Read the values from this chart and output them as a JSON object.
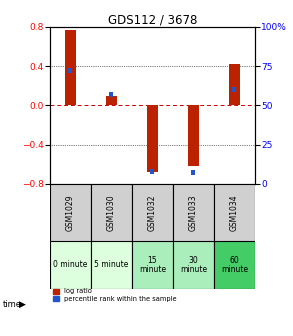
{
  "title": "GDS112 / 3678",
  "samples": [
    "GSM1029",
    "GSM1030",
    "GSM1032",
    "GSM1033",
    "GSM1034"
  ],
  "time_labels": [
    "0 minute",
    "5 minute",
    "15\nminute",
    "30\nminute",
    "60\nminute"
  ],
  "time_colors": [
    "#ddffdd",
    "#ddffdd",
    "#aaeebb",
    "#aaeebb",
    "#44cc66"
  ],
  "log_ratios": [
    0.77,
    0.1,
    -0.68,
    -0.62,
    0.42
  ],
  "percentile_ranks": [
    72,
    57,
    8,
    7,
    60
  ],
  "bar_color_red": "#bb2200",
  "bar_color_blue": "#2255cc",
  "ylim_left": [
    -0.8,
    0.8
  ],
  "ylim_right": [
    0,
    100
  ],
  "yticks_left": [
    -0.8,
    -0.4,
    0.0,
    0.4,
    0.8
  ],
  "yticks_right": [
    0,
    25,
    50,
    75,
    100
  ],
  "bg_color": "#ffffff",
  "plot_bg": "#ffffff",
  "sample_bg": "#d0d0d0",
  "zero_line_color": "#cc0000"
}
